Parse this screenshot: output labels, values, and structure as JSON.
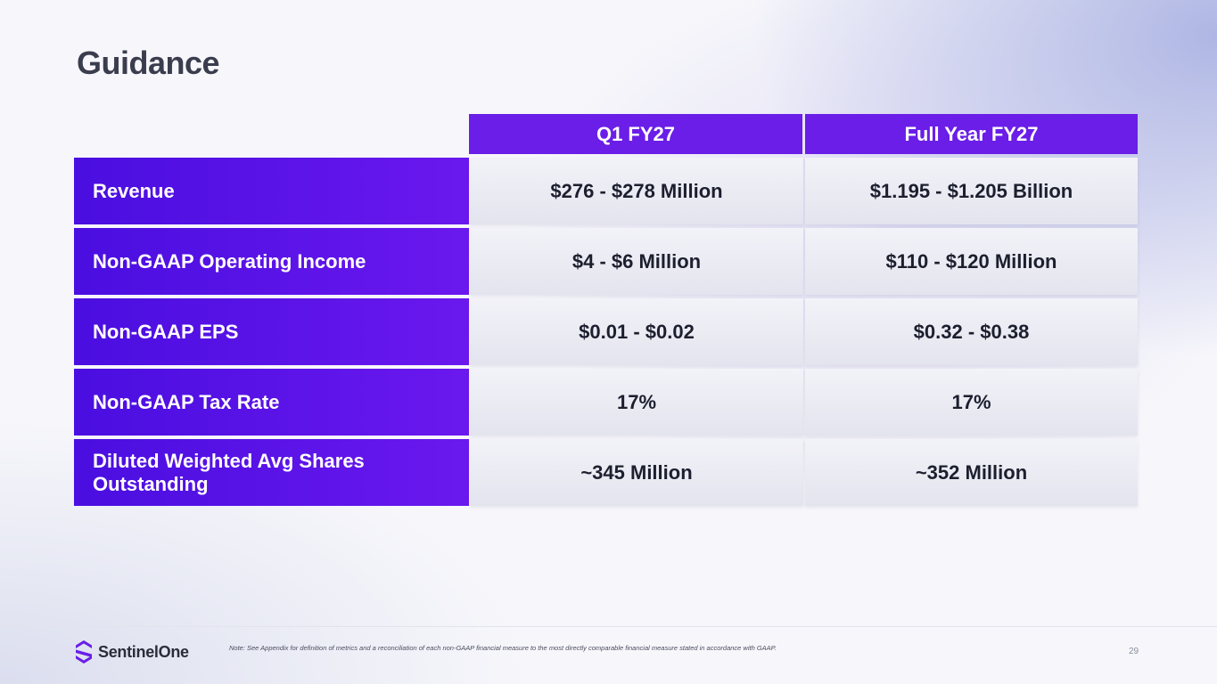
{
  "title": "Guidance",
  "columns": [
    "Q1 FY27",
    "Full Year FY27"
  ],
  "rows": [
    {
      "label": "Revenue",
      "q1": "$276 - $278 Million",
      "fy": "$1.195 - $1.205 Billion"
    },
    {
      "label": "Non-GAAP Operating Income",
      "q1": "$4 - $6 Million",
      "fy": "$110 - $120 Million"
    },
    {
      "label": "Non-GAAP EPS",
      "q1": "$0.01 - $0.02",
      "fy": "$0.32 - $0.38"
    },
    {
      "label": "Non-GAAP Tax Rate",
      "q1": "17%",
      "fy": "17%"
    },
    {
      "label": "Diluted Weighted Avg Shares Outstanding",
      "q1": "~345 Million",
      "fy": "~352 Million"
    }
  ],
  "footer": {
    "logo_text": "SentinelOne",
    "note": "Note: See Appendix for definition of metrics and a reconciliation of each non-GAAP financial measure to the most directly comparable financial measure stated in accordance with GAAP.",
    "page_number": "29"
  },
  "colors": {
    "accent": "#6a1ee8",
    "label_dark": "#4a0ee0",
    "title": "#3a3d4d"
  }
}
